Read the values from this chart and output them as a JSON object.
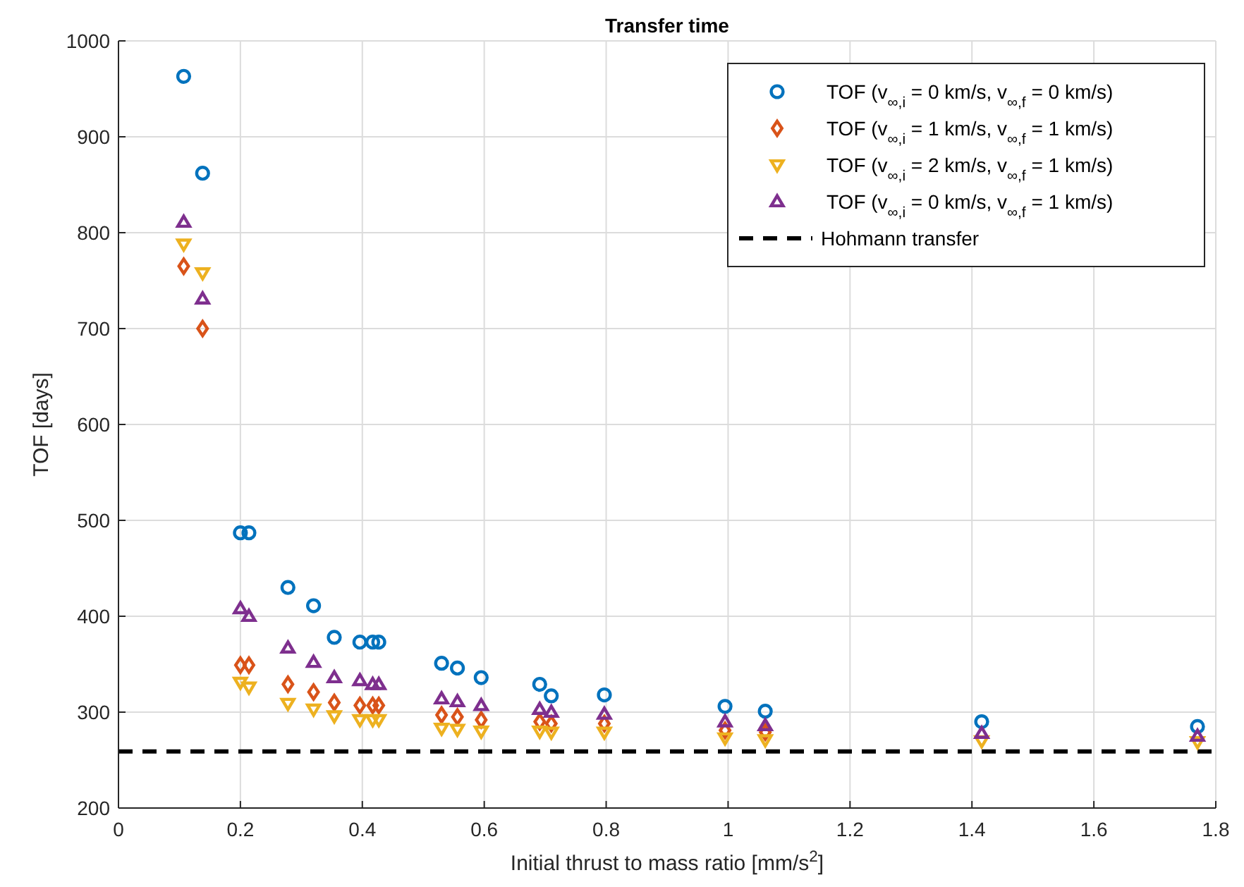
{
  "chart_data": {
    "type": "scatter",
    "title": "Transfer time",
    "xlabel": "Initial thrust to mass ratio [mm/s$^{2}$]",
    "ylabel": "TOF [days]",
    "x": [
      0.107,
      0.138,
      0.2,
      0.214,
      0.278,
      0.32,
      0.354,
      0.396,
      0.417,
      0.427,
      0.53,
      0.556,
      0.595,
      0.691,
      0.71,
      0.797,
      0.995,
      1.061,
      1.416,
      1.77
    ],
    "series": [
      {
        "name": "TOF (v$_{∞,i}$ = 0 km/s, v$_{∞,f}$ = 0 km/s)",
        "color": "#0072bd",
        "marker": "circle",
        "values": [
          963,
          862,
          487,
          487,
          430,
          411,
          378,
          373,
          373,
          373,
          351,
          346,
          336,
          329,
          317,
          318,
          306,
          301,
          290,
          285
        ]
      },
      {
        "name": "TOF (v$_{∞,i}$ = 1 km/s, v$_{∞,f}$ = 1 km/s)",
        "color": "#d95319",
        "marker": "diamond",
        "values": [
          765,
          700,
          349,
          349,
          329,
          321,
          310,
          307,
          307,
          307,
          297,
          295,
          292,
          290,
          288,
          288,
          281,
          279,
          null,
          null
        ]
      },
      {
        "name": "TOF (v$_{∞,i}$ = 2 km/s, v$_{∞,f}$ = 1 km/s)",
        "color": "#edb120",
        "marker": "triangle-down",
        "values": [
          788,
          758,
          331,
          326,
          309,
          303,
          296,
          292,
          292,
          292,
          283,
          282,
          280,
          280,
          279,
          279,
          273,
          271,
          270,
          269
        ]
      },
      {
        "name": "TOF (v$_{∞,i}$ = 0 km/s, v$_{∞,f}$ = 1 km/s)",
        "color": "#7e2f8e",
        "marker": "triangle",
        "values": [
          811,
          731,
          408,
          400,
          367,
          352,
          336,
          333,
          329,
          329,
          314,
          311,
          307,
          303,
          300,
          298,
          290,
          286,
          278,
          275
        ]
      }
    ],
    "ref_lines": [
      {
        "axis": "y",
        "value": 259,
        "label": "Hohmann transfer",
        "color": "#000000",
        "line_style": "dashed"
      }
    ],
    "xlim": [
      0,
      1.8
    ],
    "xticks": [
      0,
      0.2,
      0.4,
      0.6,
      0.8,
      1,
      1.2,
      1.4,
      1.6,
      1.8
    ],
    "ylim": [
      200,
      1000
    ],
    "yticks": [
      200,
      300,
      400,
      500,
      600,
      700,
      800,
      900,
      1000
    ],
    "grid": true,
    "legend": "top right"
  }
}
